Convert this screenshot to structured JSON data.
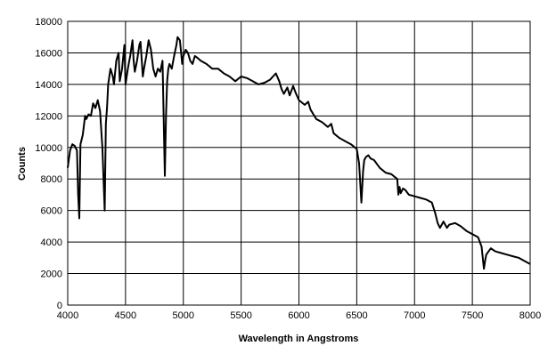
{
  "chart_data": {
    "type": "line",
    "title": "",
    "xlabel": "Wavelength in Angstroms",
    "ylabel": "Counts",
    "xlim": [
      4000,
      8000
    ],
    "ylim": [
      0,
      18000
    ],
    "x_ticks": [
      4000,
      4500,
      5000,
      5500,
      6000,
      6500,
      7000,
      7500,
      8000
    ],
    "y_ticks": [
      0,
      2000,
      4000,
      6000,
      8000,
      10000,
      12000,
      14000,
      16000,
      18000
    ],
    "grid": true,
    "legend": "none",
    "line_color": "#000000",
    "series": [
      {
        "x": [
          4000,
          4020,
          4040,
          4060,
          4080,
          4090,
          4100,
          4110,
          4130,
          4150,
          4160,
          4180,
          4200,
          4220,
          4240,
          4260,
          4280,
          4300,
          4320,
          4330,
          4340,
          4350,
          4370,
          4390,
          4400,
          4420,
          4440,
          4450,
          4470,
          4490,
          4500,
          4510,
          4520,
          4540,
          4560,
          4570,
          4580,
          4600,
          4620,
          4630,
          4650,
          4660,
          4680,
          4700,
          4720,
          4740,
          4760,
          4780,
          4800,
          4820,
          4840,
          4850,
          4860,
          4870,
          4880,
          4900,
          4920,
          4940,
          4950,
          4970,
          4990,
          5000,
          5020,
          5040,
          5060,
          5080,
          5100,
          5120,
          5150,
          5200,
          5250,
          5300,
          5350,
          5400,
          5450,
          5500,
          5550,
          5600,
          5650,
          5700,
          5750,
          5800,
          5830,
          5850,
          5870,
          5900,
          5920,
          5950,
          5970,
          6000,
          6050,
          6080,
          6100,
          6150,
          6200,
          6250,
          6280,
          6300,
          6350,
          6400,
          6450,
          6500,
          6520,
          6540,
          6555,
          6565,
          6580,
          6600,
          6620,
          6650,
          6680,
          6700,
          6750,
          6800,
          6850,
          6860,
          6870,
          6880,
          6900,
          6920,
          6950,
          7000,
          7050,
          7100,
          7150,
          7180,
          7200,
          7220,
          7250,
          7280,
          7300,
          7350,
          7400,
          7450,
          7500,
          7550,
          7580,
          7600,
          7610,
          7620,
          7640,
          7660,
          7680,
          7700,
          7750,
          7800,
          7850,
          7900,
          7950,
          8000
        ],
        "values": [
          8700,
          9800,
          10200,
          10100,
          9800,
          7000,
          5500,
          10200,
          10800,
          12000,
          11800,
          12100,
          12000,
          12800,
          12500,
          13000,
          12300,
          10000,
          6000,
          11500,
          12500,
          14000,
          15000,
          14500,
          14000,
          15500,
          16000,
          14200,
          15000,
          16500,
          14000,
          14500,
          15000,
          15800,
          16800,
          15500,
          14800,
          15500,
          16500,
          16700,
          14500,
          15000,
          15800,
          16800,
          16200,
          15000,
          14500,
          15000,
          14800,
          15500,
          8200,
          12000,
          14200,
          15000,
          15300,
          15000,
          15800,
          16500,
          17000,
          16800,
          15300,
          15800,
          16200,
          16000,
          15500,
          15300,
          15800,
          15700,
          15500,
          15300,
          15000,
          15000,
          14700,
          14500,
          14200,
          14500,
          14400,
          14200,
          14000,
          14100,
          14300,
          14700,
          14200,
          13700,
          13400,
          13800,
          13300,
          13900,
          13500,
          13000,
          12700,
          12900,
          12400,
          11800,
          11600,
          11300,
          11500,
          10900,
          10600,
          10400,
          10200,
          9900,
          9000,
          6500,
          8500,
          9200,
          9400,
          9500,
          9300,
          9200,
          8900,
          8700,
          8400,
          8300,
          8000,
          7000,
          7500,
          7100,
          7400,
          7300,
          7000,
          6900,
          6800,
          6700,
          6500,
          5800,
          5200,
          4900,
          5300,
          4900,
          5100,
          5200,
          5000,
          4700,
          4500,
          4300,
          3700,
          2300,
          2800,
          3200,
          3400,
          3600,
          3500,
          3400,
          3300,
          3200,
          3100,
          3000,
          2800,
          2600
        ]
      }
    ]
  }
}
